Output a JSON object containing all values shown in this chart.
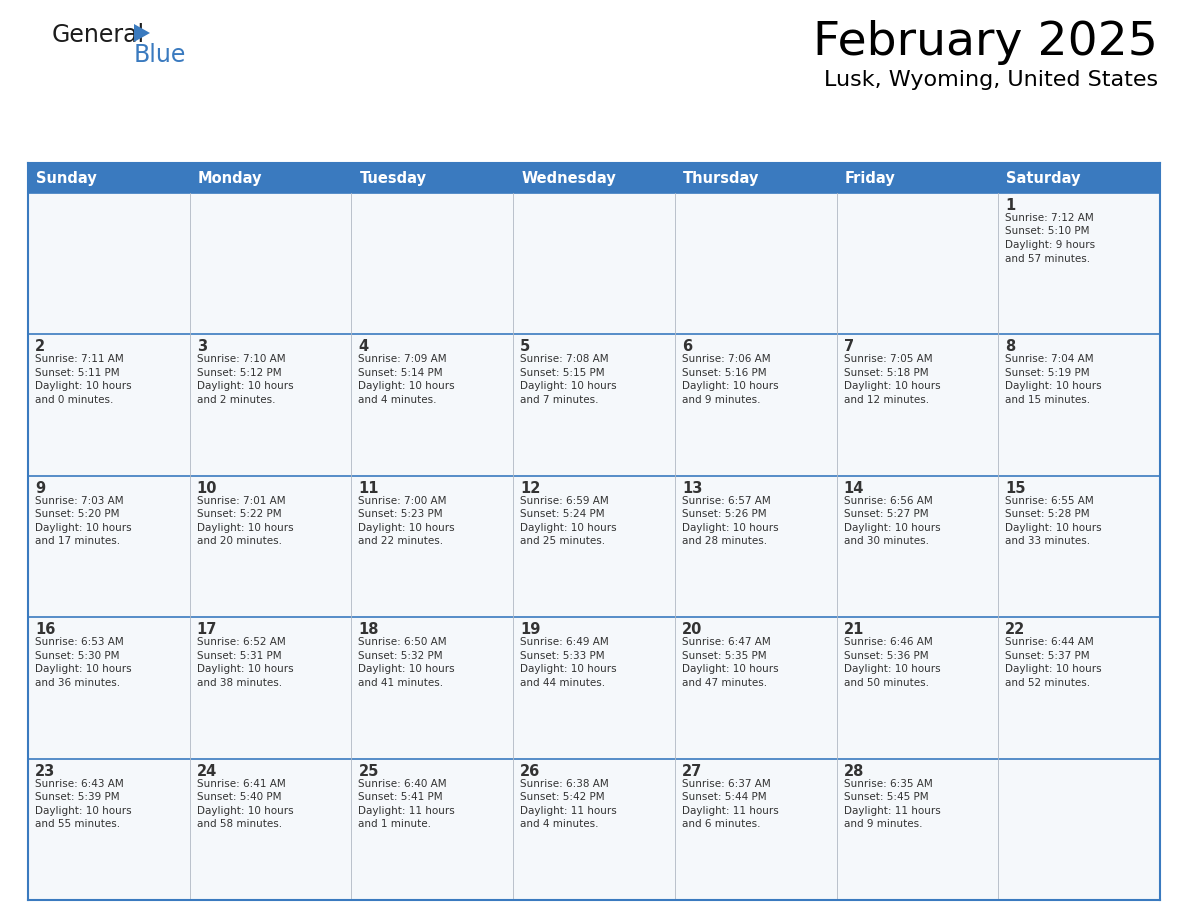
{
  "title": "February 2025",
  "subtitle": "Lusk, Wyoming, United States",
  "header_bg_color": "#3a7abf",
  "header_text_color": "#ffffff",
  "cell_bg": "#f5f8fb",
  "grid_line_color": "#3a7abf",
  "text_color": "#333333",
  "days_of_week": [
    "Sunday",
    "Monday",
    "Tuesday",
    "Wednesday",
    "Thursday",
    "Friday",
    "Saturday"
  ],
  "calendar_data": [
    [
      {
        "day": "",
        "lines": []
      },
      {
        "day": "",
        "lines": []
      },
      {
        "day": "",
        "lines": []
      },
      {
        "day": "",
        "lines": []
      },
      {
        "day": "",
        "lines": []
      },
      {
        "day": "",
        "lines": []
      },
      {
        "day": "1",
        "lines": [
          "Sunrise: 7:12 AM",
          "Sunset: 5:10 PM",
          "Daylight: 9 hours",
          "and 57 minutes."
        ]
      }
    ],
    [
      {
        "day": "2",
        "lines": [
          "Sunrise: 7:11 AM",
          "Sunset: 5:11 PM",
          "Daylight: 10 hours",
          "and 0 minutes."
        ]
      },
      {
        "day": "3",
        "lines": [
          "Sunrise: 7:10 AM",
          "Sunset: 5:12 PM",
          "Daylight: 10 hours",
          "and 2 minutes."
        ]
      },
      {
        "day": "4",
        "lines": [
          "Sunrise: 7:09 AM",
          "Sunset: 5:14 PM",
          "Daylight: 10 hours",
          "and 4 minutes."
        ]
      },
      {
        "day": "5",
        "lines": [
          "Sunrise: 7:08 AM",
          "Sunset: 5:15 PM",
          "Daylight: 10 hours",
          "and 7 minutes."
        ]
      },
      {
        "day": "6",
        "lines": [
          "Sunrise: 7:06 AM",
          "Sunset: 5:16 PM",
          "Daylight: 10 hours",
          "and 9 minutes."
        ]
      },
      {
        "day": "7",
        "lines": [
          "Sunrise: 7:05 AM",
          "Sunset: 5:18 PM",
          "Daylight: 10 hours",
          "and 12 minutes."
        ]
      },
      {
        "day": "8",
        "lines": [
          "Sunrise: 7:04 AM",
          "Sunset: 5:19 PM",
          "Daylight: 10 hours",
          "and 15 minutes."
        ]
      }
    ],
    [
      {
        "day": "9",
        "lines": [
          "Sunrise: 7:03 AM",
          "Sunset: 5:20 PM",
          "Daylight: 10 hours",
          "and 17 minutes."
        ]
      },
      {
        "day": "10",
        "lines": [
          "Sunrise: 7:01 AM",
          "Sunset: 5:22 PM",
          "Daylight: 10 hours",
          "and 20 minutes."
        ]
      },
      {
        "day": "11",
        "lines": [
          "Sunrise: 7:00 AM",
          "Sunset: 5:23 PM",
          "Daylight: 10 hours",
          "and 22 minutes."
        ]
      },
      {
        "day": "12",
        "lines": [
          "Sunrise: 6:59 AM",
          "Sunset: 5:24 PM",
          "Daylight: 10 hours",
          "and 25 minutes."
        ]
      },
      {
        "day": "13",
        "lines": [
          "Sunrise: 6:57 AM",
          "Sunset: 5:26 PM",
          "Daylight: 10 hours",
          "and 28 minutes."
        ]
      },
      {
        "day": "14",
        "lines": [
          "Sunrise: 6:56 AM",
          "Sunset: 5:27 PM",
          "Daylight: 10 hours",
          "and 30 minutes."
        ]
      },
      {
        "day": "15",
        "lines": [
          "Sunrise: 6:55 AM",
          "Sunset: 5:28 PM",
          "Daylight: 10 hours",
          "and 33 minutes."
        ]
      }
    ],
    [
      {
        "day": "16",
        "lines": [
          "Sunrise: 6:53 AM",
          "Sunset: 5:30 PM",
          "Daylight: 10 hours",
          "and 36 minutes."
        ]
      },
      {
        "day": "17",
        "lines": [
          "Sunrise: 6:52 AM",
          "Sunset: 5:31 PM",
          "Daylight: 10 hours",
          "and 38 minutes."
        ]
      },
      {
        "day": "18",
        "lines": [
          "Sunrise: 6:50 AM",
          "Sunset: 5:32 PM",
          "Daylight: 10 hours",
          "and 41 minutes."
        ]
      },
      {
        "day": "19",
        "lines": [
          "Sunrise: 6:49 AM",
          "Sunset: 5:33 PM",
          "Daylight: 10 hours",
          "and 44 minutes."
        ]
      },
      {
        "day": "20",
        "lines": [
          "Sunrise: 6:47 AM",
          "Sunset: 5:35 PM",
          "Daylight: 10 hours",
          "and 47 minutes."
        ]
      },
      {
        "day": "21",
        "lines": [
          "Sunrise: 6:46 AM",
          "Sunset: 5:36 PM",
          "Daylight: 10 hours",
          "and 50 minutes."
        ]
      },
      {
        "day": "22",
        "lines": [
          "Sunrise: 6:44 AM",
          "Sunset: 5:37 PM",
          "Daylight: 10 hours",
          "and 52 minutes."
        ]
      }
    ],
    [
      {
        "day": "23",
        "lines": [
          "Sunrise: 6:43 AM",
          "Sunset: 5:39 PM",
          "Daylight: 10 hours",
          "and 55 minutes."
        ]
      },
      {
        "day": "24",
        "lines": [
          "Sunrise: 6:41 AM",
          "Sunset: 5:40 PM",
          "Daylight: 10 hours",
          "and 58 minutes."
        ]
      },
      {
        "day": "25",
        "lines": [
          "Sunrise: 6:40 AM",
          "Sunset: 5:41 PM",
          "Daylight: 11 hours",
          "and 1 minute."
        ]
      },
      {
        "day": "26",
        "lines": [
          "Sunrise: 6:38 AM",
          "Sunset: 5:42 PM",
          "Daylight: 11 hours",
          "and 4 minutes."
        ]
      },
      {
        "day": "27",
        "lines": [
          "Sunrise: 6:37 AM",
          "Sunset: 5:44 PM",
          "Daylight: 11 hours",
          "and 6 minutes."
        ]
      },
      {
        "day": "28",
        "lines": [
          "Sunrise: 6:35 AM",
          "Sunset: 5:45 PM",
          "Daylight: 11 hours",
          "and 9 minutes."
        ]
      },
      {
        "day": "",
        "lines": []
      }
    ]
  ],
  "logo_text_general": "General",
  "logo_text_blue": "Blue",
  "logo_triangle_color": "#3a7abf",
  "figsize": [
    11.88,
    9.18
  ],
  "dpi": 100
}
